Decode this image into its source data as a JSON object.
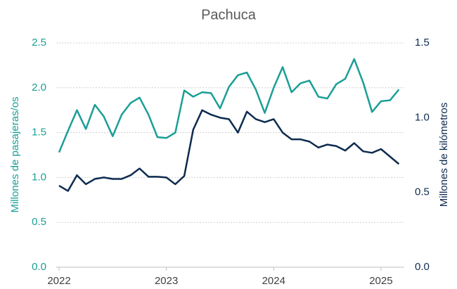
{
  "chart_data": {
    "type": "line",
    "title": "Pachuca",
    "y_label": "Millones de pasajeras/os",
    "y2_label": "Millones de kilómetros",
    "x": [
      "2022-01",
      "2022-02",
      "2022-03",
      "2022-04",
      "2022-05",
      "2022-06",
      "2022-07",
      "2022-08",
      "2022-09",
      "2022-10",
      "2022-11",
      "2022-12",
      "2023-01",
      "2023-02",
      "2023-03",
      "2023-04",
      "2023-05",
      "2023-06",
      "2023-07",
      "2023-08",
      "2023-09",
      "2023-10",
      "2023-11",
      "2023-12",
      "2024-01",
      "2024-02",
      "2024-03",
      "2024-04",
      "2024-05",
      "2024-06",
      "2024-07",
      "2024-08",
      "2024-09",
      "2024-10",
      "2024-11",
      "2024-12",
      "2025-01",
      "2025-02",
      "2025-03"
    ],
    "xticks": [
      {
        "value": "2022-01",
        "label": "2022"
      },
      {
        "value": "2023-01",
        "label": "2023"
      },
      {
        "value": "2024-01",
        "label": "2024"
      },
      {
        "value": "2025-01",
        "label": "2025"
      }
    ],
    "ylim": [
      0,
      2.5
    ],
    "yticks": [
      {
        "value": 0,
        "label": "0.0"
      },
      0.5,
      {
        "value": 1,
        "label": "1.0"
      },
      1.5,
      {
        "value": 2,
        "label": "2.0"
      },
      2.5
    ],
    "y2lim": [
      0,
      1.5
    ],
    "y2ticks": [
      {
        "value": 0,
        "label": "0.0"
      },
      0.5,
      {
        "value": 1,
        "label": "1.0"
      },
      1.5
    ],
    "grid": true,
    "series": [
      {
        "color": "#1a9e96",
        "values": [
          1.28,
          1.52,
          1.75,
          1.54,
          1.81,
          1.68,
          1.46,
          1.7,
          1.83,
          1.89,
          1.7,
          1.45,
          1.44,
          1.5,
          1.97,
          1.9,
          1.95,
          1.94,
          1.77,
          2.01,
          2.14,
          2.17,
          1.98,
          1.72,
          2.0,
          2.23,
          1.95,
          2.05,
          2.08,
          1.9,
          1.88,
          2.04,
          2.1,
          2.32,
          2.06,
          1.73,
          1.85,
          1.86,
          1.98
        ]
      },
      {
        "color": "#0d2b4e",
        "axis": "y2",
        "values": [
          0.545,
          0.51,
          0.615,
          0.555,
          0.59,
          0.6,
          0.59,
          0.59,
          0.615,
          0.66,
          0.605,
          0.605,
          0.6,
          0.555,
          0.61,
          0.92,
          1.05,
          1.02,
          1.0,
          0.99,
          0.9,
          1.04,
          0.99,
          0.97,
          0.99,
          0.9,
          0.855,
          0.855,
          0.84,
          0.8,
          0.82,
          0.81,
          0.78,
          0.83,
          0.775,
          0.765,
          0.79,
          0.74,
          0.69
        ]
      }
    ]
  }
}
